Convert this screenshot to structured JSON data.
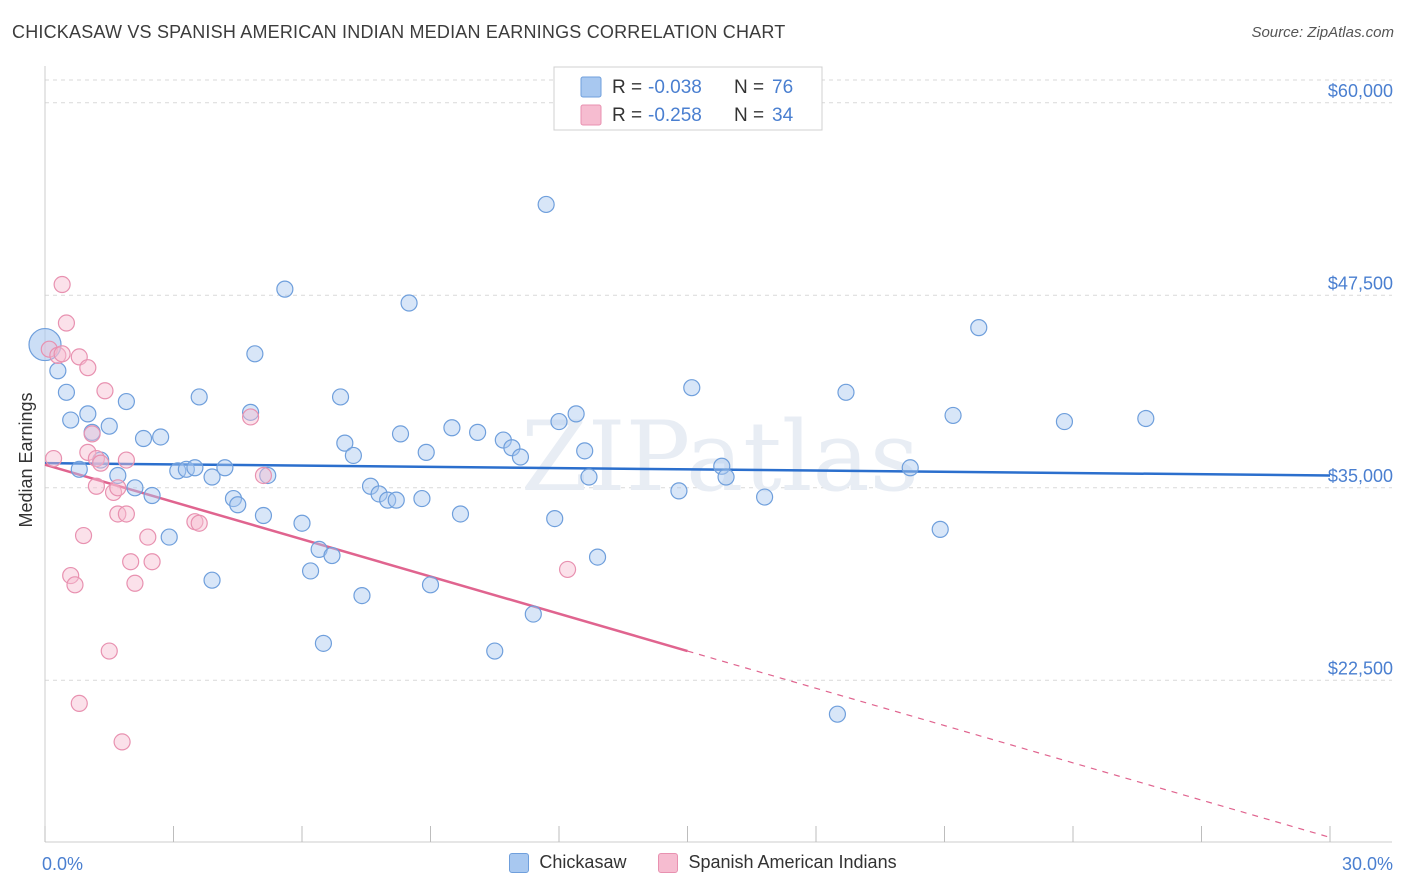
{
  "chart_data": {
    "type": "scatter",
    "title": "CHICKASAW VS SPANISH AMERICAN INDIAN MEDIAN EARNINGS CORRELATION CHART",
    "source": "Source: ZipAtlas.com",
    "ylabel": "Median Earnings",
    "xlabel": "",
    "xlim": [
      0,
      30
    ],
    "ylim": [
      12000,
      62000
    ],
    "x_tick_labels": {
      "left": "0.0%",
      "right": "30.0%"
    },
    "y_ticks": [
      {
        "value": 22500,
        "label": "$22,500"
      },
      {
        "value": 35000,
        "label": "$35,000"
      },
      {
        "value": 47500,
        "label": "$47,500"
      },
      {
        "value": 60000,
        "label": "$60,000"
      }
    ],
    "watermark": "ZIPatlas",
    "legend": {
      "rows": [
        {
          "r_label": "R =",
          "r_value": "-0.038",
          "n_label": "N =",
          "n_value": "76"
        },
        {
          "r_label": "R =",
          "r_value": "-0.258",
          "n_label": "N =",
          "n_value": "34"
        }
      ]
    },
    "colors": {
      "blue_fill": "#a8c8f0",
      "blue_stroke": "#6f9fdc",
      "blue_line": "#2b6fcd",
      "pink_fill": "#f6bcd0",
      "pink_stroke": "#e891b0",
      "pink_line": "#e0648f",
      "axis_text": "#4a7fd0",
      "grid": "#d9d9d9"
    },
    "series": [
      {
        "name": "Chickasaw",
        "trend": {
          "x": [
            0,
            30
          ],
          "y": [
            36600,
            35800
          ]
        },
        "points": [
          [
            0.0,
            44300
          ],
          [
            0.3,
            42600
          ],
          [
            0.5,
            41200
          ],
          [
            0.6,
            39400
          ],
          [
            0.8,
            36200
          ],
          [
            1.0,
            39800
          ],
          [
            1.1,
            38600
          ],
          [
            1.3,
            36800
          ],
          [
            1.5,
            39000
          ],
          [
            1.7,
            35800
          ],
          [
            1.9,
            40600
          ],
          [
            2.1,
            35000
          ],
          [
            2.3,
            38200
          ],
          [
            2.5,
            34500
          ],
          [
            2.7,
            38300
          ],
          [
            2.9,
            31800
          ],
          [
            3.1,
            36100
          ],
          [
            3.3,
            36200
          ],
          [
            3.5,
            36300
          ],
          [
            3.6,
            40900
          ],
          [
            3.9,
            35700
          ],
          [
            3.9,
            29000
          ],
          [
            4.2,
            36300
          ],
          [
            4.4,
            34300
          ],
          [
            4.5,
            33900
          ],
          [
            4.8,
            39900
          ],
          [
            4.9,
            43700
          ],
          [
            5.1,
            33200
          ],
          [
            5.2,
            35800
          ],
          [
            5.6,
            47900
          ],
          [
            6.0,
            32700
          ],
          [
            6.2,
            29600
          ],
          [
            6.4,
            31000
          ],
          [
            6.5,
            24900
          ],
          [
            6.7,
            30600
          ],
          [
            6.9,
            40900
          ],
          [
            7.0,
            37900
          ],
          [
            7.2,
            37100
          ],
          [
            7.4,
            28000
          ],
          [
            7.6,
            35100
          ],
          [
            7.8,
            34600
          ],
          [
            8.0,
            34200
          ],
          [
            8.2,
            34200
          ],
          [
            8.3,
            38500
          ],
          [
            8.5,
            47000
          ],
          [
            8.8,
            34300
          ],
          [
            8.9,
            37300
          ],
          [
            9.0,
            28700
          ],
          [
            9.5,
            38900
          ],
          [
            9.7,
            33300
          ],
          [
            10.1,
            38600
          ],
          [
            10.5,
            24400
          ],
          [
            10.7,
            38100
          ],
          [
            10.9,
            37600
          ],
          [
            11.1,
            37000
          ],
          [
            11.4,
            26800
          ],
          [
            11.7,
            53400
          ],
          [
            11.9,
            33000
          ],
          [
            12.0,
            39300
          ],
          [
            12.4,
            39800
          ],
          [
            12.6,
            37400
          ],
          [
            12.7,
            35700
          ],
          [
            12.9,
            30500
          ],
          [
            14.8,
            34800
          ],
          [
            15.1,
            41500
          ],
          [
            15.8,
            36400
          ],
          [
            15.9,
            35700
          ],
          [
            16.8,
            34400
          ],
          [
            18.5,
            20300
          ],
          [
            18.7,
            41200
          ],
          [
            20.2,
            36300
          ],
          [
            20.9,
            32300
          ],
          [
            21.2,
            39700
          ],
          [
            21.8,
            45400
          ],
          [
            23.8,
            39300
          ],
          [
            25.7,
            39500
          ]
        ]
      },
      {
        "name": "Spanish American Indians",
        "trend": {
          "x": [
            0,
            15.0
          ],
          "y": [
            36500,
            24400
          ]
        },
        "trend_dash": {
          "x": [
            15.0,
            30
          ],
          "y": [
            24400,
            12300
          ]
        },
        "points": [
          [
            0.1,
            44000
          ],
          [
            0.2,
            36900
          ],
          [
            0.3,
            43600
          ],
          [
            0.4,
            48200
          ],
          [
            0.4,
            43700
          ],
          [
            0.5,
            45700
          ],
          [
            0.6,
            29300
          ],
          [
            0.7,
            28700
          ],
          [
            0.8,
            21000
          ],
          [
            0.8,
            43500
          ],
          [
            0.9,
            31900
          ],
          [
            1.0,
            42800
          ],
          [
            1.0,
            37300
          ],
          [
            1.1,
            38500
          ],
          [
            1.2,
            36900
          ],
          [
            1.2,
            35100
          ],
          [
            1.3,
            36600
          ],
          [
            1.4,
            41300
          ],
          [
            1.5,
            24400
          ],
          [
            1.6,
            34700
          ],
          [
            1.7,
            35000
          ],
          [
            1.7,
            33300
          ],
          [
            1.8,
            18500
          ],
          [
            1.9,
            36800
          ],
          [
            1.9,
            33300
          ],
          [
            2.0,
            30200
          ],
          [
            2.1,
            28800
          ],
          [
            2.4,
            31800
          ],
          [
            2.5,
            30200
          ],
          [
            3.5,
            32800
          ],
          [
            3.6,
            32700
          ],
          [
            4.8,
            39600
          ],
          [
            5.1,
            35800
          ],
          [
            12.2,
            29700
          ]
        ]
      }
    ]
  }
}
